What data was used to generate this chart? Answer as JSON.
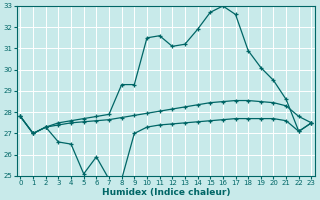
{
  "xlabel": "Humidex (Indice chaleur)",
  "bg_color": "#c8eaea",
  "grid_color": "#ffffff",
  "line_color": "#006666",
  "xmin": 0,
  "xmax": 23,
  "ymin": 25,
  "ymax": 33,
  "x": [
    0,
    1,
    2,
    3,
    4,
    5,
    6,
    7,
    8,
    9,
    10,
    11,
    12,
    13,
    14,
    15,
    16,
    17,
    18,
    19,
    20,
    21,
    22,
    23
  ],
  "line_top": [
    27.8,
    27.0,
    27.3,
    27.5,
    27.6,
    27.7,
    27.8,
    27.9,
    29.3,
    29.3,
    31.5,
    31.6,
    31.1,
    31.2,
    31.9,
    32.7,
    33.0,
    32.6,
    30.9,
    30.1,
    29.5,
    28.6,
    27.1,
    27.5
  ],
  "line_mid": [
    27.8,
    27.0,
    27.3,
    27.4,
    27.5,
    27.55,
    27.6,
    27.65,
    27.75,
    27.85,
    27.95,
    28.05,
    28.15,
    28.25,
    28.35,
    28.45,
    28.5,
    28.55,
    28.55,
    28.5,
    28.45,
    28.3,
    27.8,
    27.5
  ],
  "line_bot": [
    27.8,
    27.0,
    27.3,
    26.6,
    26.5,
    25.1,
    25.9,
    24.85,
    24.85,
    27.0,
    27.3,
    27.4,
    27.45,
    27.5,
    27.55,
    27.6,
    27.65,
    27.7,
    27.7,
    27.7,
    27.7,
    27.6,
    27.1,
    27.5
  ]
}
